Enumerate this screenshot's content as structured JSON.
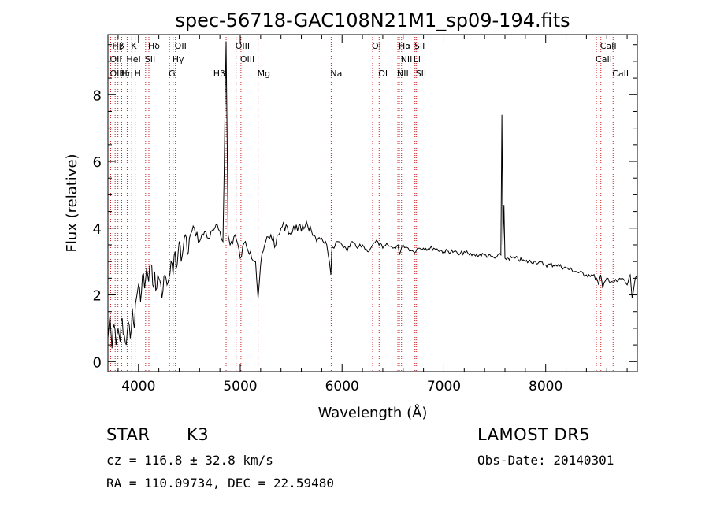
{
  "chart_data": {
    "type": "line",
    "title": "spec-56718-GAC108N21M1_sp09-194.fits",
    "xlabel": "Wavelength (Å)",
    "ylabel": "Flux (relative)",
    "xlim": [
      3700,
      8900
    ],
    "ylim": [
      -0.3,
      9.8
    ],
    "xticks": [
      4000,
      5000,
      6000,
      7000,
      8000
    ],
    "yticks": [
      0,
      2,
      4,
      6,
      8
    ],
    "grid": false,
    "line_color": "#000000",
    "marker_color": "#cc2222",
    "spectrum": {
      "x": [
        3700,
        3720,
        3740,
        3760,
        3780,
        3800,
        3820,
        3840,
        3860,
        3880,
        3900,
        3920,
        3940,
        3960,
        3980,
        4000,
        4020,
        4040,
        4060,
        4080,
        4100,
        4120,
        4140,
        4160,
        4180,
        4200,
        4220,
        4240,
        4260,
        4280,
        4300,
        4320,
        4340,
        4360,
        4380,
        4400,
        4420,
        4440,
        4460,
        4480,
        4500,
        4550,
        4600,
        4650,
        4700,
        4750,
        4800,
        4830,
        4861,
        4880,
        4900,
        4950,
        5000,
        5050,
        5100,
        5150,
        5175,
        5200,
        5250,
        5300,
        5350,
        5400,
        5450,
        5500,
        5550,
        5600,
        5650,
        5700,
        5750,
        5800,
        5850,
        5890,
        5900,
        5920,
        5950,
        6000,
        6050,
        6100,
        6150,
        6200,
        6250,
        6300,
        6350,
        6400,
        6450,
        6500,
        6550,
        6563,
        6600,
        6650,
        6700,
        6750,
        6800,
        6900,
        7000,
        7100,
        7150,
        7200,
        7250,
        7300,
        7400,
        7500,
        7560,
        7570,
        7580,
        7590,
        7600,
        7700,
        7800,
        7900,
        8000,
        8100,
        8200,
        8300,
        8400,
        8450,
        8500,
        8520,
        8540,
        8560,
        8600,
        8650,
        8700,
        8750,
        8800,
        8830,
        8850,
        8880,
        8900
      ],
      "y": [
        0.7,
        1.4,
        0.4,
        1.1,
        0.5,
        1.0,
        0.6,
        1.3,
        0.8,
        0.5,
        1.2,
        0.7,
        1.6,
        1.0,
        1.9,
        2.3,
        1.8,
        2.6,
        2.2,
        2.8,
        2.4,
        2.9,
        2.3,
        2.7,
        2.2,
        2.5,
        2.3,
        2.1,
        2.6,
        2.3,
        2.5,
        3.0,
        2.6,
        3.3,
        2.9,
        3.6,
        3.0,
        3.4,
        3.8,
        3.2,
        3.7,
        4.0,
        3.6,
        3.9,
        3.7,
        4.0,
        3.9,
        3.6,
        9.6,
        3.8,
        3.5,
        3.8,
        3.1,
        3.6,
        3.3,
        3.0,
        1.9,
        2.9,
        3.6,
        3.8,
        3.5,
        4.0,
        4.1,
        3.8,
        4.1,
        3.9,
        4.2,
        3.9,
        3.6,
        3.7,
        3.5,
        2.6,
        3.4,
        3.4,
        3.6,
        3.5,
        3.3,
        3.6,
        3.4,
        3.5,
        3.3,
        3.5,
        3.6,
        3.4,
        3.5,
        3.4,
        3.5,
        3.2,
        3.5,
        3.4,
        3.3,
        3.4,
        3.4,
        3.4,
        3.3,
        3.3,
        3.2,
        3.3,
        3.2,
        3.2,
        3.2,
        3.1,
        3.2,
        7.4,
        3.5,
        4.7,
        3.1,
        3.1,
        3.0,
        3.0,
        2.9,
        2.9,
        2.8,
        2.7,
        2.6,
        2.6,
        2.5,
        2.3,
        2.6,
        2.2,
        2.5,
        2.4,
        2.4,
        2.5,
        2.3,
        2.6,
        1.9,
        2.5,
        2.5
      ]
    },
    "line_markers": [
      {
        "label": "Hβ",
        "x": 3750,
        "row": 0,
        "anchor": "left"
      },
      {
        "label": "K",
        "x": 3934,
        "row": 0,
        "anchor": "left"
      },
      {
        "label": "Hδ",
        "x": 4102,
        "row": 0,
        "anchor": "left"
      },
      {
        "label": "OII",
        "x": 4363,
        "row": 0,
        "anchor": "left"
      },
      {
        "label": "OIII",
        "x": 4959,
        "row": 0,
        "anchor": "left"
      },
      {
        "label": "OI",
        "x": 6300,
        "row": 0,
        "anchor": "left"
      },
      {
        "label": "Hα",
        "x": 6563,
        "row": 0,
        "anchor": "left"
      },
      {
        "label": "SII",
        "x": 6717,
        "row": 0,
        "anchor": "left"
      },
      {
        "label": "CaII",
        "x": 8542,
        "row": 0,
        "anchor": "left"
      },
      {
        "label": "OII",
        "x": 3727,
        "row": 1,
        "anchor": "left"
      },
      {
        "label": "HeI",
        "x": 3889,
        "row": 1,
        "anchor": "left"
      },
      {
        "label": "SII",
        "x": 4070,
        "row": 1,
        "anchor": "left"
      },
      {
        "label": "Hγ",
        "x": 4340,
        "row": 1,
        "anchor": "left"
      },
      {
        "label": "OIII",
        "x": 5007,
        "row": 1,
        "anchor": "left"
      },
      {
        "label": "NII",
        "x": 6584,
        "row": 1,
        "anchor": "left"
      },
      {
        "label": "Li",
        "x": 6708,
        "row": 1,
        "anchor": "left"
      },
      {
        "label": "CaII",
        "x": 8498,
        "row": 1,
        "anchor": "left"
      },
      {
        "label": "OIII",
        "x": 3727,
        "row": 2,
        "anchor": "left"
      },
      {
        "label": "Hη",
        "x": 3835,
        "row": 2,
        "anchor": "left"
      },
      {
        "label": "H",
        "x": 3968,
        "row": 2,
        "anchor": "left"
      },
      {
        "label": "G",
        "x": 4305,
        "row": 2,
        "anchor": "left"
      },
      {
        "label": "Hβ",
        "x": 4861,
        "row": 2,
        "anchor": "right"
      },
      {
        "label": "Mg",
        "x": 5175,
        "row": 2,
        "anchor": "left"
      },
      {
        "label": "Na",
        "x": 5893,
        "row": 2,
        "anchor": "left"
      },
      {
        "label": "OI",
        "x": 6364,
        "row": 2,
        "anchor": "left"
      },
      {
        "label": "NII",
        "x": 6548,
        "row": 2,
        "anchor": "left"
      },
      {
        "label": "SII",
        "x": 6731,
        "row": 2,
        "anchor": "left"
      },
      {
        "label": "CaII",
        "x": 8662,
        "row": 2,
        "anchor": "left"
      }
    ],
    "reference_lines_x": [
      3727,
      3750,
      3771,
      3798,
      3835,
      3889,
      3934,
      3968,
      4070,
      4102,
      4305,
      4340,
      4363,
      4861,
      4959,
      5007,
      5175,
      5893,
      6300,
      6364,
      6548,
      6563,
      6584,
      6708,
      6717,
      6731,
      8498,
      8542,
      8662
    ]
  },
  "info": {
    "object_class": "STAR",
    "subclass": "K3",
    "survey": "LAMOST DR5",
    "redshift": "cz = 116.8 ± 32.8 km/s",
    "obs_date": "Obs-Date: 20140301",
    "coords": "RA = 110.09734, DEC =  22.59480"
  }
}
